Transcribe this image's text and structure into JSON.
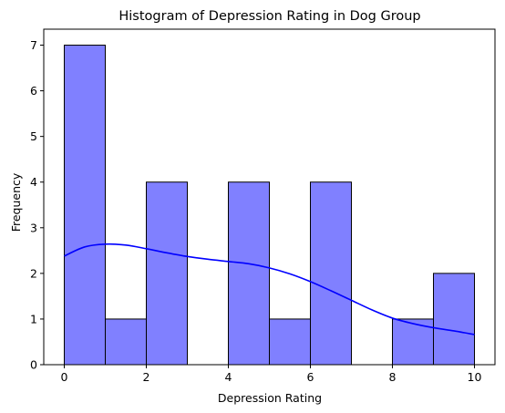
{
  "chart_data": {
    "type": "bar",
    "title": "Histogram of Depression Rating in Dog Group",
    "xlabel": "Depression Rating",
    "ylabel": "Frequency",
    "xlim": [
      -0.5,
      10.5
    ],
    "ylim": [
      0,
      7.35
    ],
    "x_ticks": [
      0,
      2,
      4,
      6,
      8,
      10
    ],
    "y_ticks": [
      0,
      1,
      2,
      3,
      4,
      5,
      6,
      7
    ],
    "bins": [
      {
        "start": 0,
        "end": 1,
        "count": 7
      },
      {
        "start": 1,
        "end": 2,
        "count": 1
      },
      {
        "start": 2,
        "end": 3,
        "count": 4
      },
      {
        "start": 3,
        "end": 4,
        "count": 0
      },
      {
        "start": 4,
        "end": 5,
        "count": 4
      },
      {
        "start": 5,
        "end": 6,
        "count": 1
      },
      {
        "start": 6,
        "end": 7,
        "count": 4
      },
      {
        "start": 7,
        "end": 8,
        "count": 0
      },
      {
        "start": 8,
        "end": 9,
        "count": 1
      },
      {
        "start": 9,
        "end": 10,
        "count": 2
      }
    ],
    "kde_curve": {
      "x": [
        0,
        0.5,
        1,
        1.5,
        2,
        2.5,
        3,
        3.5,
        4,
        4.5,
        5,
        5.5,
        6,
        6.5,
        7,
        7.5,
        8,
        8.5,
        9,
        9.5,
        10
      ],
      "y": [
        2.38,
        2.58,
        2.64,
        2.62,
        2.54,
        2.45,
        2.37,
        2.31,
        2.26,
        2.21,
        2.12,
        1.99,
        1.82,
        1.62,
        1.41,
        1.2,
        1.02,
        0.9,
        0.81,
        0.74,
        0.66
      ]
    },
    "grid": false,
    "colors": {
      "bar_fill": "#8080ff",
      "bar_edge": "#000000",
      "kde_line": "#0000ff"
    }
  }
}
